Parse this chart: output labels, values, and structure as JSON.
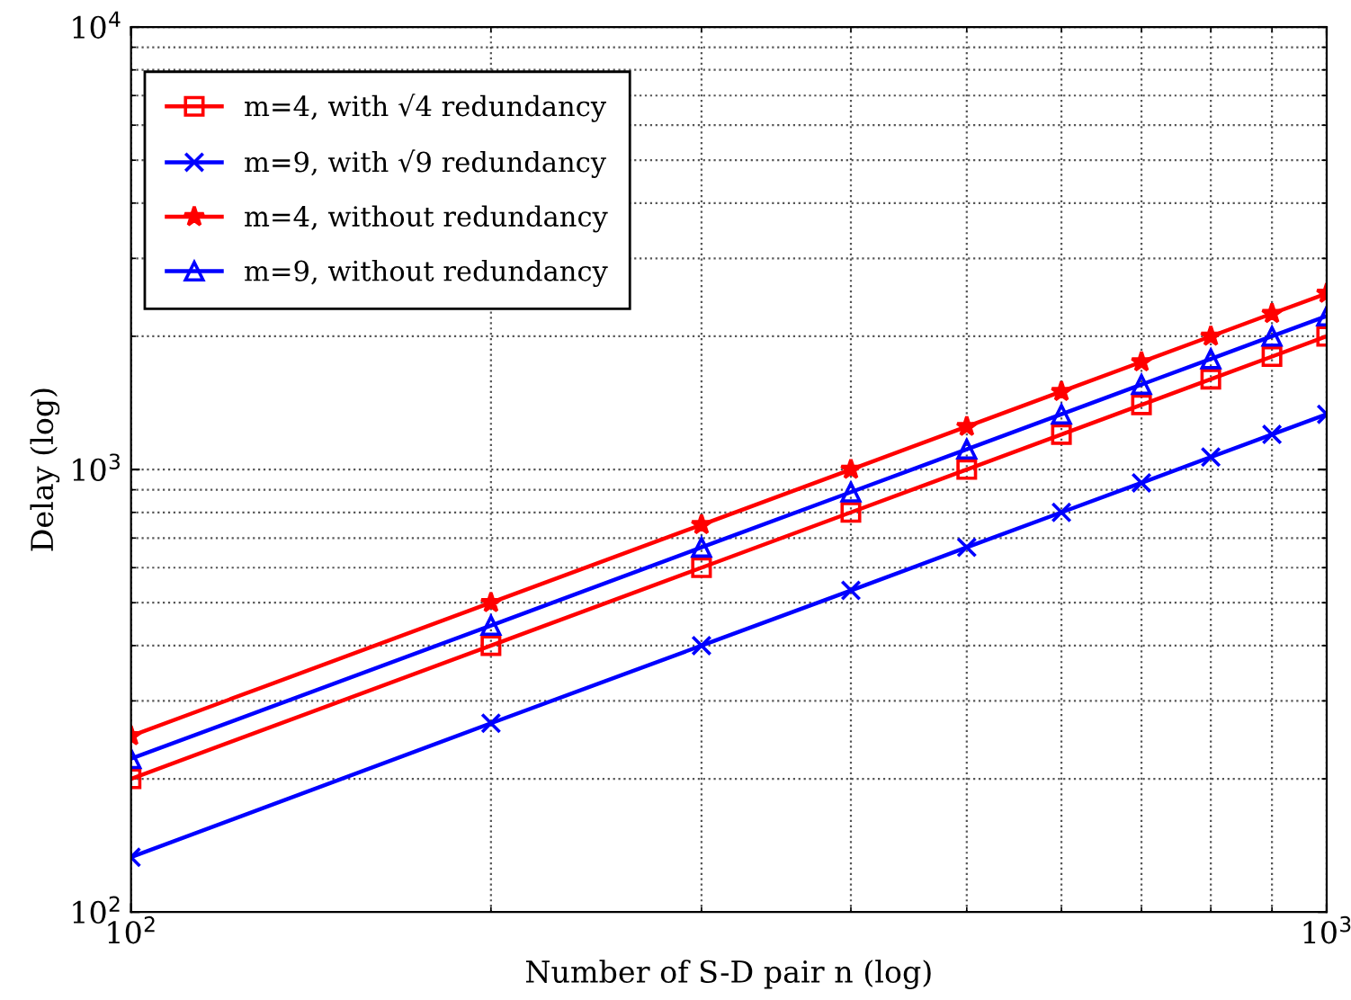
{
  "chart_data": {
    "type": "line",
    "xlabel": "Number of S-D pair n (log)",
    "ylabel": "Delay (log)",
    "log": "xy",
    "grid": true,
    "legend": "top left",
    "line_style": "solid",
    "x": [
      100,
      200,
      300,
      400,
      500,
      600,
      700,
      800,
      900,
      1000
    ],
    "xlim": [
      100,
      1000
    ],
    "xticks": [
      {
        "value": 100,
        "label": "10$^{2}$"
      },
      {
        "value": 1000,
        "label": "10$^{3}$"
      }
    ],
    "ylim": [
      100,
      10000
    ],
    "yticks": [
      {
        "value": 100,
        "label": "10$^{2}$"
      },
      {
        "value": 1000,
        "label": "10$^{3}$"
      },
      {
        "value": 10000,
        "label": "10$^{4}$"
      }
    ],
    "series": [
      {
        "name": "m=4, with √4 redundancy",
        "color": "#ff0000",
        "marker": "square",
        "values": [
          200,
          400,
          600,
          800,
          1000,
          1200,
          1400,
          1600,
          1800,
          2000
        ]
      },
      {
        "name": "m=9, with √9 redundancy",
        "color": "#0000ff",
        "marker": "cross",
        "values": [
          133,
          267,
          400,
          533,
          667,
          800,
          933,
          1067,
          1200,
          1333
        ]
      },
      {
        "name": "m=4, without redundancy",
        "color": "#ff0000",
        "marker": "star",
        "values": [
          250,
          500,
          750,
          1000,
          1250,
          1500,
          1750,
          2000,
          2250,
          2500
        ]
      },
      {
        "name": "m=9, without redundancy",
        "color": "#0000ff",
        "marker": "triangle",
        "values": [
          222,
          444,
          667,
          889,
          1111,
          1333,
          1556,
          1778,
          2000,
          2222
        ]
      }
    ]
  }
}
